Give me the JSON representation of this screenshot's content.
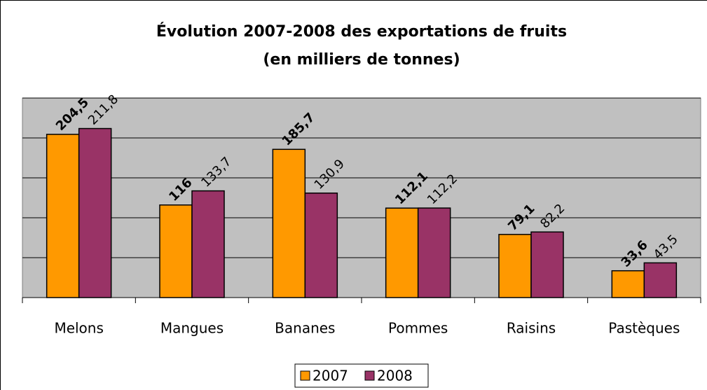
{
  "chart_data": {
    "type": "bar",
    "title": "Évolution 2007-2008 des exportations de fruits",
    "subtitle": "(en milliers de tonnes)",
    "categories": [
      "Melons",
      "Mangues",
      "Bananes",
      "Pommes",
      "Raisins",
      "Pastèques"
    ],
    "series": [
      {
        "name": "2007",
        "color": "#ff9900",
        "values": [
          204.5,
          116,
          185.7,
          112.1,
          79.1,
          33.6
        ],
        "value_labels": [
          "204,5",
          "116",
          "185,7",
          "112,1",
          "79,1",
          "33,6"
        ]
      },
      {
        "name": "2008",
        "color": "#993366",
        "values": [
          211.8,
          133.7,
          130.9,
          112.2,
          82.2,
          43.5
        ],
        "value_labels": [
          "211,8",
          "133,7",
          "130,9",
          "112,2",
          "82,2",
          "43,5"
        ]
      }
    ],
    "ylim": [
      0,
      250
    ],
    "yticks": [
      0,
      50,
      100,
      150,
      200,
      250
    ],
    "grid": true,
    "plot_background": "#c0c0c0",
    "legend": "bottom"
  }
}
